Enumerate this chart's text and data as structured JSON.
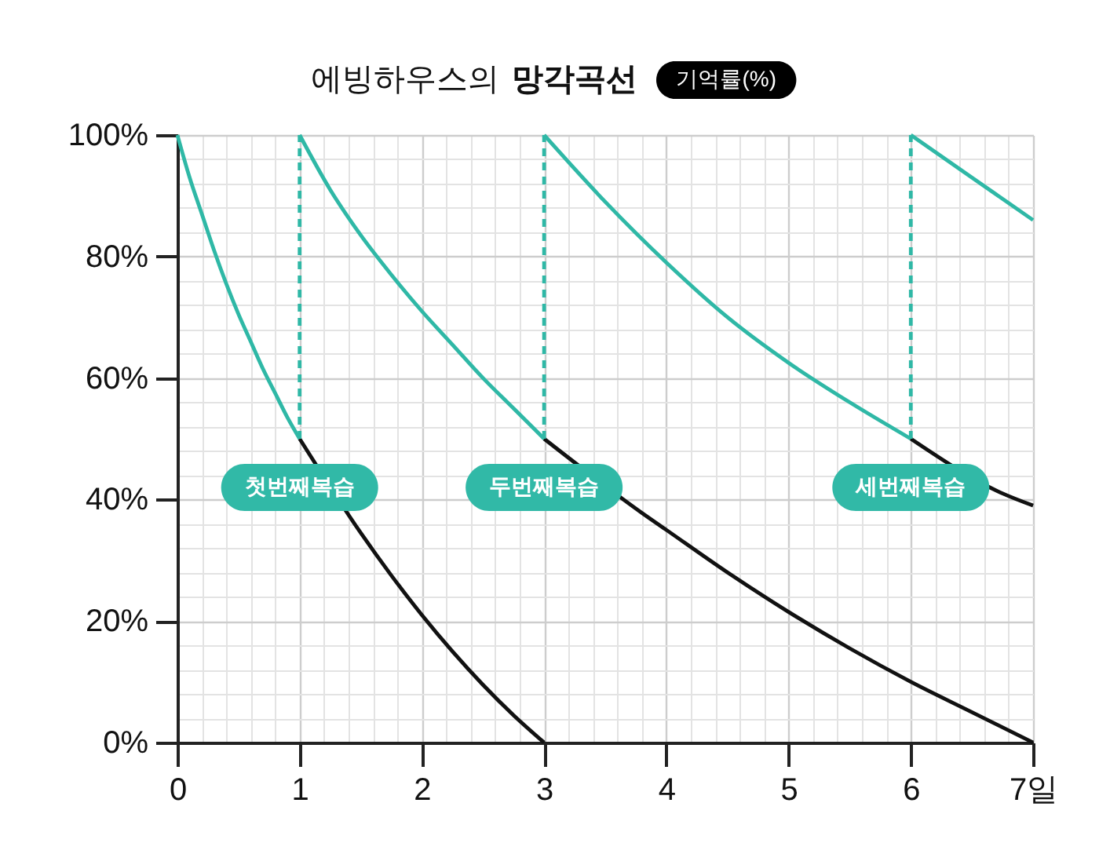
{
  "chart_data": {
    "type": "line",
    "title": "에빙하우스의 망각곡선",
    "ylabel": "기억률(%)",
    "xlim": [
      0,
      7
    ],
    "ylim": [
      0,
      100
    ],
    "xticks": [
      0,
      1,
      2,
      3,
      4,
      5,
      6,
      {
        "value": 7,
        "label": "7일"
      }
    ],
    "yticks": [
      {
        "value": 0,
        "label": "0%"
      },
      {
        "value": 20,
        "label": "20%"
      },
      {
        "value": 40,
        "label": "40%"
      },
      {
        "value": 60,
        "label": "60%"
      },
      {
        "value": 80,
        "label": "80%"
      },
      {
        "value": 100,
        "label": "100%"
      }
    ],
    "grid": true,
    "line_style": "solid",
    "series": [
      {
        "color": "#2fb8a6",
        "x": [
          0,
          0.1,
          0.2,
          0.3,
          0.4,
          0.5,
          0.6,
          0.7,
          0.8,
          0.9,
          1
        ],
        "values": [
          100,
          93,
          87,
          81,
          75.5,
          70.5,
          66,
          61.5,
          57.5,
          53.5,
          50
        ]
      },
      {
        "color": "#2fb8a6",
        "x": [
          1,
          1.25,
          1.5,
          1.75,
          2,
          2.25,
          2.5,
          2.75,
          3
        ],
        "values": [
          100,
          91,
          83.5,
          77,
          71,
          65.5,
          60,
          55,
          50
        ]
      },
      {
        "color": "#2fb8a6",
        "x": [
          3,
          3.5,
          4,
          4.5,
          5,
          5.5,
          6
        ],
        "values": [
          100,
          89,
          79,
          70,
          62.5,
          56,
          50
        ]
      },
      {
        "color": "#2fb8a6",
        "x": [
          6,
          6.5,
          7
        ],
        "values": [
          100,
          93,
          86
        ]
      },
      {
        "color": "#111111",
        "x": [
          1,
          1.5,
          1.75,
          2,
          2.25,
          2.5,
          2.75,
          3
        ],
        "values": [
          50,
          34.5,
          27.5,
          21,
          15,
          9.5,
          4.5,
          0
        ]
      },
      {
        "color": "#111111",
        "x": [
          3,
          3.8,
          4,
          4.5,
          5,
          5.5,
          6,
          6.5,
          7
        ],
        "values": [
          50,
          37.8,
          35,
          28,
          21.5,
          15.5,
          10,
          5,
          0
        ]
      },
      {
        "color": "#111111",
        "x": [
          6,
          6.75,
          7
        ],
        "values": [
          50,
          41,
          39
        ]
      },
      {
        "color": "#2fb8a6",
        "line_style": "dashed",
        "x": [
          1,
          1
        ],
        "values": [
          50,
          100
        ]
      },
      {
        "color": "#2fb8a6",
        "line_style": "dashed",
        "x": [
          3,
          3
        ],
        "values": [
          50,
          100
        ]
      },
      {
        "color": "#2fb8a6",
        "line_style": "dashed",
        "x": [
          6,
          6
        ],
        "values": [
          50,
          100
        ]
      }
    ],
    "annotations": [
      {
        "text": "첫번째복습",
        "x": 1,
        "y": 50
      },
      {
        "text": "두번째복습",
        "x": 3,
        "y": 50
      },
      {
        "text": "세번째복습",
        "x": 6,
        "y": 50
      }
    ]
  }
}
